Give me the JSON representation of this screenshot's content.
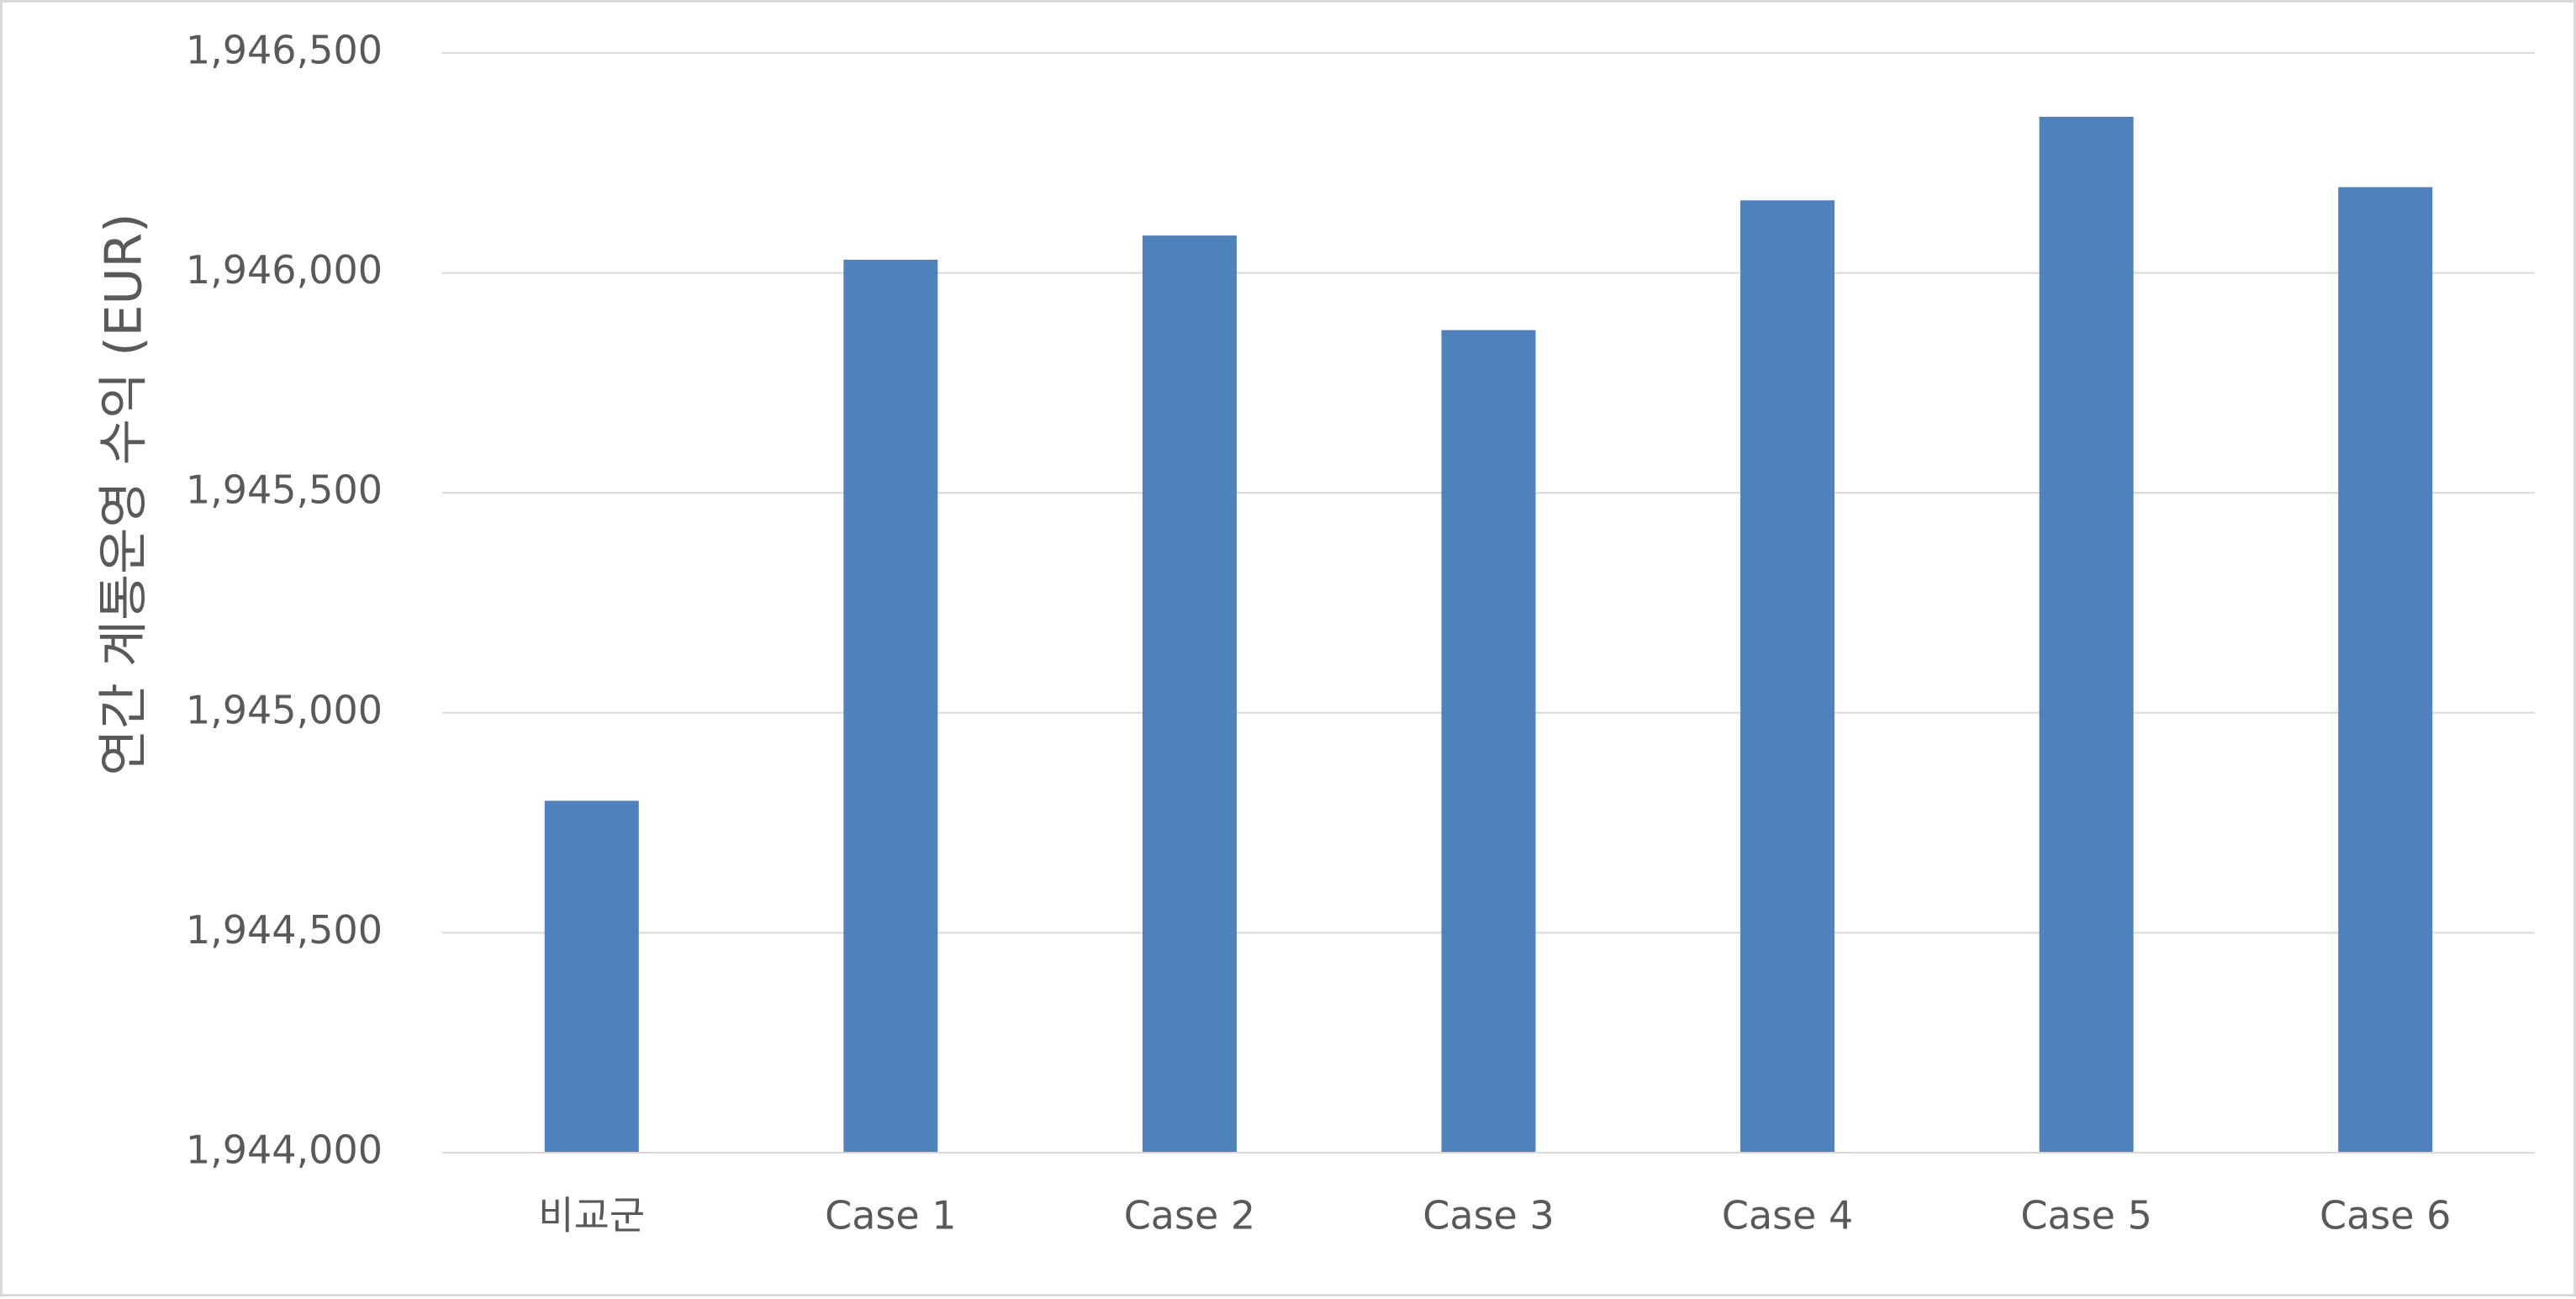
{
  "colors": {
    "bar": "#4f81bd",
    "grid": "#d9d9d9",
    "text": "#595959"
  },
  "chart_data": {
    "type": "bar",
    "title": "",
    "xlabel": "",
    "ylabel": "연간 계통운영 수익 (EUR)",
    "categories": [
      "비교군",
      "Case 1",
      "Case 2",
      "Case 3",
      "Case 4",
      "Case 5",
      "Case 6"
    ],
    "values": [
      1944800,
      1946030,
      1946085,
      1945870,
      1946165,
      1946355,
      1946195
    ],
    "ylim": [
      1944000,
      1946500
    ],
    "yticks": [
      1944000,
      1944500,
      1945000,
      1945500,
      1946000,
      1946500
    ],
    "ytick_labels": [
      "1,944,000",
      "1,944,500",
      "1,945,000",
      "1,945,500",
      "1,946,000",
      "1,946,500"
    ],
    "grid": true,
    "legend": "none"
  }
}
